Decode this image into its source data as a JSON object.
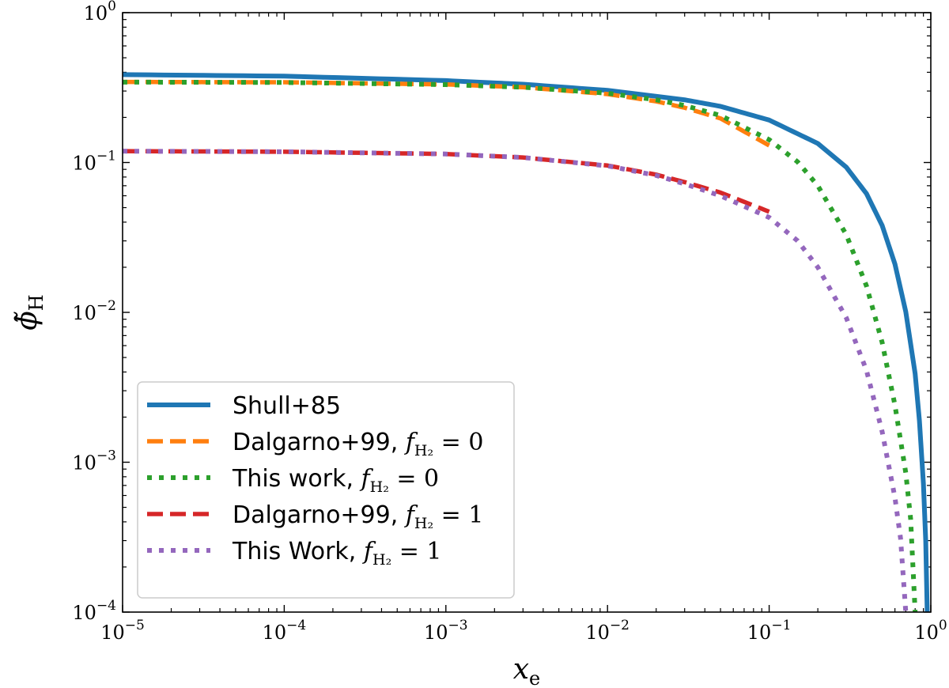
{
  "chart_data": {
    "type": "line",
    "title": "",
    "xlabel": "x",
    "xlabel_sub": "e",
    "ylabel": "ϕ̃",
    "ylabel_sub": "H",
    "xscale": "log",
    "yscale": "log",
    "xlim": [
      1e-05,
      1
    ],
    "ylim": [
      0.0001,
      1
    ],
    "x_ticks": [
      {
        "value": 1e-05,
        "base": "10",
        "exp": "−5"
      },
      {
        "value": 0.0001,
        "base": "10",
        "exp": "−4"
      },
      {
        "value": 0.001,
        "base": "10",
        "exp": "−3"
      },
      {
        "value": 0.01,
        "base": "10",
        "exp": "−2"
      },
      {
        "value": 0.1,
        "base": "10",
        "exp": "−1"
      },
      {
        "value": 1,
        "base": "10",
        "exp": "0"
      }
    ],
    "y_ticks": [
      {
        "value": 0.0001,
        "base": "10",
        "exp": "−4"
      },
      {
        "value": 0.001,
        "base": "10",
        "exp": "−3"
      },
      {
        "value": 0.01,
        "base": "10",
        "exp": "−2"
      },
      {
        "value": 0.1,
        "base": "10",
        "exp": "−1"
      },
      {
        "value": 1,
        "base": "10",
        "exp": "0"
      }
    ],
    "legend_position": "lower-left",
    "series": [
      {
        "name": "Shull+85",
        "label_plain": "Shull+85",
        "color": "#1f77b4",
        "style": "solid",
        "points": [
          [
            1e-05,
            0.386
          ],
          [
            0.0001,
            0.377
          ],
          [
            0.001,
            0.352
          ],
          [
            0.003,
            0.333
          ],
          [
            0.01,
            0.303
          ],
          [
            0.03,
            0.262
          ],
          [
            0.05,
            0.237
          ],
          [
            0.1,
            0.192
          ],
          [
            0.2,
            0.134
          ],
          [
            0.3,
            0.093
          ],
          [
            0.4,
            0.062
          ],
          [
            0.5,
            0.038
          ],
          [
            0.6,
            0.021
          ],
          [
            0.7,
            0.0101
          ],
          [
            0.8,
            0.0039
          ],
          [
            0.85,
            0.0019
          ],
          [
            0.9,
            0.00072
          ],
          [
            0.93,
            0.0003
          ],
          [
            0.95,
            0.0001
          ]
        ]
      },
      {
        "name": "Dalgarno+99, f_H2 = 0",
        "label_plain": "Dalgarno+99, ",
        "label_var": "f",
        "label_sub": "H₂",
        "label_eq": " = 0",
        "color": "#ff7f0e",
        "style": "dashed",
        "points": [
          [
            1e-05,
            0.345
          ],
          [
            0.0001,
            0.343
          ],
          [
            0.001,
            0.332
          ],
          [
            0.003,
            0.318
          ],
          [
            0.01,
            0.286
          ],
          [
            0.02,
            0.256
          ],
          [
            0.03,
            0.232
          ],
          [
            0.05,
            0.197
          ],
          [
            0.1,
            0.13
          ]
        ]
      },
      {
        "name": "This work, f_H2 = 0",
        "label_plain": "This work, ",
        "label_var": "f",
        "label_sub": "H₂",
        "label_eq": " = 0",
        "color": "#2ca02c",
        "style": "dotted",
        "points": [
          [
            1e-05,
            0.344
          ],
          [
            0.0001,
            0.342
          ],
          [
            0.001,
            0.331
          ],
          [
            0.003,
            0.318
          ],
          [
            0.01,
            0.29
          ],
          [
            0.02,
            0.262
          ],
          [
            0.03,
            0.24
          ],
          [
            0.05,
            0.206
          ],
          [
            0.1,
            0.142
          ],
          [
            0.15,
            0.101
          ],
          [
            0.2,
            0.07
          ],
          [
            0.3,
            0.033
          ],
          [
            0.4,
            0.015
          ],
          [
            0.5,
            0.0063
          ],
          [
            0.6,
            0.0024
          ],
          [
            0.7,
            0.00085
          ],
          [
            0.75,
            0.00042
          ],
          [
            0.8,
            0.0001
          ]
        ]
      },
      {
        "name": "Dalgarno+99, f_H2 = 1",
        "label_plain": "Dalgarno+99, ",
        "label_var": "f",
        "label_sub": "H₂",
        "label_eq": " = 1",
        "color": "#d62728",
        "style": "dashed",
        "points": [
          [
            1e-05,
            0.119
          ],
          [
            0.0001,
            0.118
          ],
          [
            0.001,
            0.114
          ],
          [
            0.003,
            0.108
          ],
          [
            0.01,
            0.0955
          ],
          [
            0.02,
            0.083
          ],
          [
            0.03,
            0.074
          ],
          [
            0.05,
            0.063
          ],
          [
            0.1,
            0.047
          ]
        ]
      },
      {
        "name": "This Work, f_H2 = 1",
        "label_plain": "This Work, ",
        "label_var": "f",
        "label_sub": "H₂",
        "label_eq": " = 1",
        "color": "#9467bd",
        "style": "dotted",
        "points": [
          [
            1e-05,
            0.119
          ],
          [
            0.0001,
            0.118
          ],
          [
            0.001,
            0.114
          ],
          [
            0.003,
            0.108
          ],
          [
            0.01,
            0.095
          ],
          [
            0.02,
            0.082
          ],
          [
            0.03,
            0.072
          ],
          [
            0.05,
            0.06
          ],
          [
            0.1,
            0.043
          ],
          [
            0.15,
            0.03
          ],
          [
            0.2,
            0.02
          ],
          [
            0.3,
            0.0092
          ],
          [
            0.4,
            0.0041
          ],
          [
            0.5,
            0.0016
          ],
          [
            0.6,
            0.00058
          ],
          [
            0.65,
            0.00031
          ],
          [
            0.7,
            0.0001
          ]
        ]
      }
    ]
  }
}
